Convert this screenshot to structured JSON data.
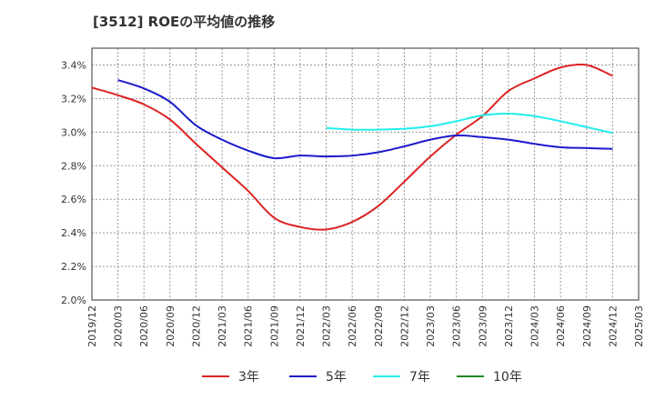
{
  "chart_data": {
    "type": "line",
    "title": "[3512]  ROEの平均値の推移",
    "xlabel": "",
    "ylabel": "",
    "ylim": [
      2.0,
      3.5
    ],
    "y_ticks": [
      "2.0%",
      "2.2%",
      "2.4%",
      "2.6%",
      "2.8%",
      "3.0%",
      "3.2%",
      "3.4%"
    ],
    "x_ticks": [
      "2019/12",
      "2020/03",
      "2020/06",
      "2020/09",
      "2020/12",
      "2021/03",
      "2021/06",
      "2021/09",
      "2021/12",
      "2022/03",
      "2022/06",
      "2022/09",
      "2022/12",
      "2023/03",
      "2023/06",
      "2023/09",
      "2023/12",
      "2024/03",
      "2024/06",
      "2024/09",
      "2024/12",
      "2025/03"
    ],
    "grid": true,
    "legend_position": "bottom",
    "series": [
      {
        "name": "3年",
        "color": "#dd2222",
        "points": [
          [
            "2019/12",
            3.265
          ],
          [
            "2020/03",
            3.22
          ],
          [
            "2020/06",
            3.165
          ],
          [
            "2020/09",
            3.075
          ],
          [
            "2020/12",
            2.93
          ],
          [
            "2021/03",
            2.79
          ],
          [
            "2021/06",
            2.65
          ],
          [
            "2021/09",
            2.49
          ],
          [
            "2021/12",
            2.435
          ],
          [
            "2022/03",
            2.42
          ],
          [
            "2022/06",
            2.465
          ],
          [
            "2022/09",
            2.56
          ],
          [
            "2022/12",
            2.705
          ],
          [
            "2023/03",
            2.855
          ],
          [
            "2023/06",
            2.985
          ],
          [
            "2023/09",
            3.095
          ],
          [
            "2023/12",
            3.245
          ],
          [
            "2024/03",
            3.32
          ],
          [
            "2024/06",
            3.385
          ],
          [
            "2024/09",
            3.4
          ],
          [
            "2024/12",
            3.335
          ]
        ]
      },
      {
        "name": "5年",
        "color": "#1a1acc",
        "points": [
          [
            "2020/03",
            3.31
          ],
          [
            "2020/06",
            3.26
          ],
          [
            "2020/09",
            3.18
          ],
          [
            "2020/12",
            3.04
          ],
          [
            "2021/03",
            2.955
          ],
          [
            "2021/06",
            2.89
          ],
          [
            "2021/09",
            2.845
          ],
          [
            "2021/12",
            2.86
          ],
          [
            "2022/03",
            2.855
          ],
          [
            "2022/06",
            2.86
          ],
          [
            "2022/09",
            2.88
          ],
          [
            "2022/12",
            2.915
          ],
          [
            "2023/03",
            2.955
          ],
          [
            "2023/06",
            2.98
          ],
          [
            "2023/09",
            2.97
          ],
          [
            "2023/12",
            2.955
          ],
          [
            "2024/03",
            2.93
          ],
          [
            "2024/06",
            2.91
          ],
          [
            "2024/09",
            2.905
          ],
          [
            "2024/12",
            2.9
          ]
        ]
      },
      {
        "name": "7年",
        "color": "#22eeee",
        "points": [
          [
            "2022/03",
            3.025
          ],
          [
            "2022/06",
            3.015
          ],
          [
            "2022/09",
            3.015
          ],
          [
            "2022/12",
            3.02
          ],
          [
            "2023/03",
            3.035
          ],
          [
            "2023/06",
            3.065
          ],
          [
            "2023/09",
            3.1
          ],
          [
            "2023/12",
            3.11
          ],
          [
            "2024/03",
            3.095
          ],
          [
            "2024/06",
            3.065
          ],
          [
            "2024/09",
            3.03
          ],
          [
            "2024/12",
            2.995
          ]
        ]
      },
      {
        "name": "10年",
        "color": "#228822",
        "points": []
      }
    ]
  }
}
